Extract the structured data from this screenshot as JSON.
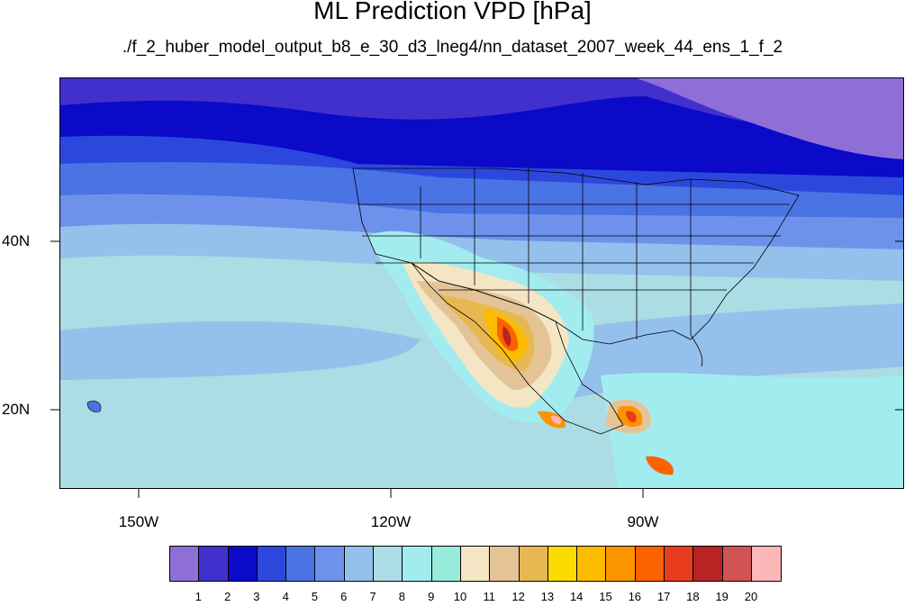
{
  "title": "ML Prediction VPD [hPa]",
  "subtitle": "./f_2_huber_model_output_b8_e_30_d3_lneg4/nn_dataset_2007_week_44_ens_1_f_2",
  "map": {
    "lat_labels": [
      "40N",
      "20N"
    ],
    "lon_labels": [
      "150W",
      "120W",
      "90W"
    ]
  },
  "colorbar": {
    "colors": [
      "#8f6ed8",
      "#4230cc",
      "#0a0ac8",
      "#2c48dc",
      "#4a74e4",
      "#6e92ec",
      "#94c0ec",
      "#acdce4",
      "#a2ecf0",
      "#98ecdc",
      "#f4e6c4",
      "#e4c496",
      "#e8b850",
      "#fcdc00",
      "#fcbc00",
      "#fc9400",
      "#fc6200",
      "#e83c1e",
      "#b82424",
      "#d05454",
      "#fcb8b8"
    ],
    "labels": [
      "1",
      "2",
      "3",
      "4",
      "5",
      "6",
      "7",
      "8",
      "9",
      "10",
      "11",
      "12",
      "13",
      "14",
      "15",
      "16",
      "17",
      "18",
      "19",
      "20"
    ]
  }
}
